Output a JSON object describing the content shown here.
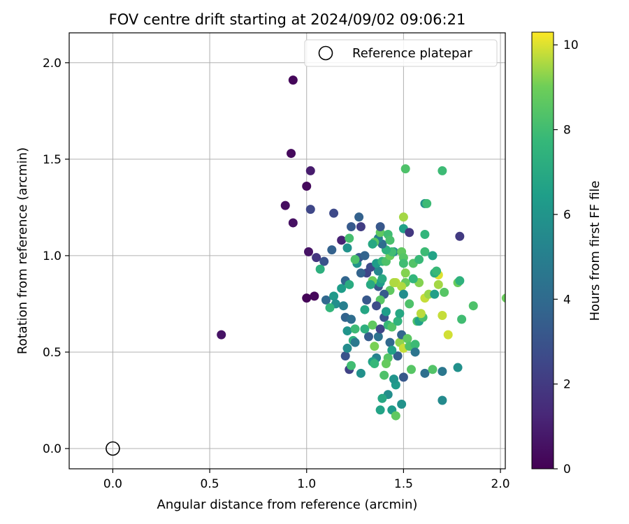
{
  "chart_data": {
    "type": "scatter",
    "title": "FOV centre drift starting at 2024/09/02 09:06:21",
    "xlabel": "Angular distance from reference (arcmin)",
    "ylabel": "Rotation from reference (arcmin)",
    "xlim": [
      -0.225,
      2.025
    ],
    "ylim": [
      -0.105,
      2.155
    ],
    "x_ticks": [
      "0.0",
      "0.5",
      "1.0",
      "1.5",
      "2.0"
    ],
    "y_ticks": [
      "0.0",
      "0.5",
      "1.0",
      "1.5",
      "2.0"
    ],
    "grid": true,
    "legend": {
      "position": "top-right",
      "entries": [
        {
          "label": "Reference platepar",
          "marker": "open-circle"
        }
      ]
    },
    "reference_point": {
      "x": 0.0,
      "y": 0.0
    },
    "colorbar": {
      "label": "Hours from first FF file",
      "range": [
        0,
        10.3
      ],
      "ticks": [
        "0",
        "2",
        "4",
        "6",
        "8",
        "10"
      ],
      "colormap": "viridis"
    },
    "points": [
      [
        0.93,
        1.91,
        0.2
      ],
      [
        0.92,
        1.53,
        0.3
      ],
      [
        1.02,
        1.44,
        0.9
      ],
      [
        1.0,
        1.36,
        0.3
      ],
      [
        0.89,
        1.26,
        0.4
      ],
      [
        0.93,
        1.17,
        0.5
      ],
      [
        1.02,
        1.24,
        2.5
      ],
      [
        1.01,
        1.02,
        0.6
      ],
      [
        1.05,
        0.99,
        1.8
      ],
      [
        1.04,
        0.79,
        0.2
      ],
      [
        1.0,
        0.78,
        0.1
      ],
      [
        0.56,
        0.59,
        0.6
      ],
      [
        1.14,
        1.22,
        2.6
      ],
      [
        1.18,
        1.08,
        1.1
      ],
      [
        1.21,
        1.04,
        5.9
      ],
      [
        1.23,
        1.15,
        3.3
      ],
      [
        1.27,
        1.2,
        3.6
      ],
      [
        1.28,
        1.15,
        2.1
      ],
      [
        1.22,
        1.09,
        8.1
      ],
      [
        1.13,
        1.03,
        3.6
      ],
      [
        1.09,
        0.97,
        3.0
      ],
      [
        1.07,
        0.93,
        7.3
      ],
      [
        1.1,
        0.77,
        3.9
      ],
      [
        1.14,
        0.79,
        6.2
      ],
      [
        1.15,
        0.75,
        5.7
      ],
      [
        1.18,
        0.83,
        6.4
      ],
      [
        1.2,
        0.87,
        3.8
      ],
      [
        1.22,
        0.85,
        7.1
      ],
      [
        1.19,
        0.74,
        5.0
      ],
      [
        1.12,
        0.73,
        7.6
      ],
      [
        1.2,
        0.68,
        3.7
      ],
      [
        1.23,
        0.67,
        4.1
      ],
      [
        1.21,
        0.61,
        6.0
      ],
      [
        1.25,
        0.62,
        7.9
      ],
      [
        1.24,
        0.56,
        7.4
      ],
      [
        1.25,
        0.55,
        4.7
      ],
      [
        1.2,
        0.48,
        3.0
      ],
      [
        1.21,
        0.52,
        5.6
      ],
      [
        1.22,
        0.41,
        2.3
      ],
      [
        1.23,
        0.43,
        8.0
      ],
      [
        1.28,
        0.39,
        5.8
      ],
      [
        1.32,
        0.58,
        3.4
      ],
      [
        1.3,
        0.62,
        7.3
      ],
      [
        1.31,
        0.77,
        3.2
      ],
      [
        1.3,
        0.72,
        6.8
      ],
      [
        1.34,
        0.64,
        8.7
      ],
      [
        1.35,
        0.53,
        9.1
      ],
      [
        1.36,
        0.47,
        5.1
      ],
      [
        1.34,
        0.45,
        6.6
      ],
      [
        1.35,
        0.44,
        7.7
      ],
      [
        1.37,
        0.58,
        4.4
      ],
      [
        1.38,
        0.62,
        2.4
      ],
      [
        1.4,
        0.68,
        3.0
      ],
      [
        1.41,
        0.71,
        6.4
      ],
      [
        1.42,
        0.64,
        7.8
      ],
      [
        1.44,
        0.63,
        8.4
      ],
      [
        1.43,
        0.55,
        3.9
      ],
      [
        1.42,
        0.47,
        8.5
      ],
      [
        1.41,
        0.44,
        8.8
      ],
      [
        1.4,
        0.38,
        8.3
      ],
      [
        1.42,
        0.28,
        5.7
      ],
      [
        1.39,
        0.26,
        6.9
      ],
      [
        1.38,
        0.2,
        6.7
      ],
      [
        1.44,
        0.2,
        6.3
      ],
      [
        1.46,
        0.17,
        8.7
      ],
      [
        1.49,
        0.23,
        5.9
      ],
      [
        1.46,
        0.33,
        6.3
      ],
      [
        1.45,
        0.36,
        6.0
      ],
      [
        1.5,
        0.37,
        3.2
      ],
      [
        1.47,
        0.48,
        3.5
      ],
      [
        1.44,
        0.51,
        6.6
      ],
      [
        1.48,
        0.55,
        9.3
      ],
      [
        1.5,
        0.52,
        9.8
      ],
      [
        1.49,
        0.59,
        3.8
      ],
      [
        1.52,
        0.57,
        8.6
      ],
      [
        1.53,
        0.53,
        8.3
      ],
      [
        1.56,
        0.54,
        7.9
      ],
      [
        1.56,
        0.5,
        4.5
      ],
      [
        1.54,
        0.41,
        8.5
      ],
      [
        1.61,
        0.39,
        4.2
      ],
      [
        1.65,
        0.41,
        8.4
      ],
      [
        1.7,
        0.4,
        4.6
      ],
      [
        1.78,
        0.42,
        5.8
      ],
      [
        1.7,
        0.25,
        5.5
      ],
      [
        1.47,
        0.66,
        7.5
      ],
      [
        1.48,
        0.7,
        6.9
      ],
      [
        1.53,
        0.75,
        8.3
      ],
      [
        1.57,
        0.66,
        8.3
      ],
      [
        1.58,
        0.66,
        6.6
      ],
      [
        1.6,
        0.68,
        8.1
      ],
      [
        1.59,
        0.7,
        9.7
      ],
      [
        1.61,
        0.78,
        9.8
      ],
      [
        1.63,
        0.8,
        9.4
      ],
      [
        1.66,
        0.8,
        6.5
      ],
      [
        1.7,
        0.69,
        9.8
      ],
      [
        1.73,
        0.59,
        9.9
      ],
      [
        1.71,
        0.81,
        8.5
      ],
      [
        1.68,
        0.85,
        9.5
      ],
      [
        1.68,
        0.9,
        10.0
      ],
      [
        1.66,
        0.91,
        7.2
      ],
      [
        1.67,
        0.92,
        7.8
      ],
      [
        1.78,
        0.86,
        8.9
      ],
      [
        1.79,
        0.87,
        7.4
      ],
      [
        1.8,
        0.67,
        8.0
      ],
      [
        1.86,
        0.74,
        8.3
      ],
      [
        1.58,
        0.86,
        9.2
      ],
      [
        1.55,
        0.88,
        7.6
      ],
      [
        1.51,
        0.91,
        9.2
      ],
      [
        1.51,
        0.86,
        8.8
      ],
      [
        1.49,
        0.84,
        9.6
      ],
      [
        1.5,
        0.8,
        5.7
      ],
      [
        1.46,
        0.86,
        9.7
      ],
      [
        1.43,
        0.82,
        8.7
      ],
      [
        1.4,
        0.8,
        3.3
      ],
      [
        1.38,
        0.77,
        8.5
      ],
      [
        1.36,
        0.74,
        2.7
      ],
      [
        1.37,
        0.84,
        3.1
      ],
      [
        1.38,
        0.86,
        6.3
      ],
      [
        1.39,
        0.88,
        7.0
      ],
      [
        1.37,
        0.92,
        5.4
      ],
      [
        1.34,
        0.87,
        9.0
      ],
      [
        1.33,
        0.85,
        7.0
      ],
      [
        1.31,
        0.91,
        2.4
      ],
      [
        1.28,
        0.91,
        3.7
      ],
      [
        1.26,
        0.96,
        5.9
      ],
      [
        1.27,
        0.99,
        3.2
      ],
      [
        1.25,
        0.98,
        8.3
      ],
      [
        1.3,
        1.0,
        3.7
      ],
      [
        1.33,
        0.94,
        2.6
      ],
      [
        1.36,
        0.96,
        6.4
      ],
      [
        1.39,
        0.97,
        7.6
      ],
      [
        1.41,
        0.97,
        8.3
      ],
      [
        1.43,
        1.0,
        8.9
      ],
      [
        1.45,
        1.02,
        5.7
      ],
      [
        1.44,
        1.02,
        8.0
      ],
      [
        1.41,
        1.03,
        7.4
      ],
      [
        1.39,
        1.06,
        4.1
      ],
      [
        1.37,
        1.09,
        5.0
      ],
      [
        1.35,
        1.07,
        8.5
      ],
      [
        1.34,
        1.06,
        6.9
      ],
      [
        1.38,
        1.12,
        8.7
      ],
      [
        1.38,
        1.15,
        3.2
      ],
      [
        1.42,
        1.11,
        8.0
      ],
      [
        1.43,
        1.08,
        8.2
      ],
      [
        1.49,
        1.02,
        8.7
      ],
      [
        1.5,
        0.99,
        8.5
      ],
      [
        1.5,
        0.96,
        8.0
      ],
      [
        1.5,
        1.2,
        9.5
      ],
      [
        1.5,
        1.14,
        6.6
      ],
      [
        1.53,
        1.12,
        1.9
      ],
      [
        1.55,
        0.96,
        8.4
      ],
      [
        1.58,
        0.98,
        7.8
      ],
      [
        1.61,
        1.02,
        7.9
      ],
      [
        1.65,
        1.0,
        6.7
      ],
      [
        1.61,
        1.11,
        7.6
      ],
      [
        1.61,
        1.27,
        5.9
      ],
      [
        1.62,
        1.27,
        7.9
      ],
      [
        1.51,
        1.45,
        8.3
      ],
      [
        1.7,
        1.44,
        7.9
      ],
      [
        1.79,
        1.1,
        2.0
      ],
      [
        1.45,
        0.86,
        9.6
      ],
      [
        2.03,
        0.78,
        8.9
      ]
    ]
  }
}
